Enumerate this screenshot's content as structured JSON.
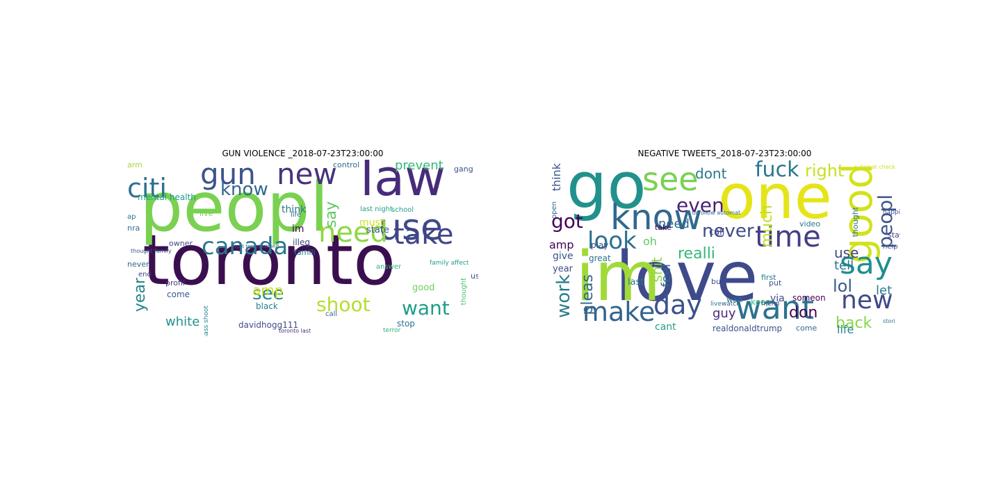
{
  "panels": [
    {
      "title": "GUN VIOLENCE _2018-07-23T23:00:00",
      "background": "#ffffff",
      "words": [
        {
          "text": "toronto",
          "color": "#3b0f4f"
        },
        {
          "text": "peopl",
          "color": "#7ad151"
        },
        {
          "text": "law",
          "color": "#472c7a"
        },
        {
          "text": "use",
          "color": "#3e4a89"
        },
        {
          "text": "gun",
          "color": "#3b528b"
        },
        {
          "text": "new",
          "color": "#46337e"
        },
        {
          "text": "citi",
          "color": "#2c728e"
        },
        {
          "text": "need",
          "color": "#8fd744"
        },
        {
          "text": "take",
          "color": "#414487"
        },
        {
          "text": "canada",
          "color": "#2a788e"
        },
        {
          "text": "know",
          "color": "#31688e"
        },
        {
          "text": "shoot",
          "color": "#b5de2b"
        },
        {
          "text": "see",
          "color": "#23898e"
        },
        {
          "text": "want",
          "color": "#1f9e89"
        },
        {
          "text": "year",
          "color": "#25858e"
        },
        {
          "text": "white",
          "color": "#21918c"
        },
        {
          "text": "amp",
          "color": "#d8e219"
        },
        {
          "text": "prevent",
          "color": "#35b779"
        },
        {
          "text": "say",
          "color": "#5ec962"
        },
        {
          "text": "davidhogg111",
          "color": "#3e4c8a"
        },
        {
          "text": "must",
          "color": "#cde11d"
        },
        {
          "text": "think",
          "color": "#2a788e"
        },
        {
          "text": "mental health",
          "color": "#1f9a8a"
        },
        {
          "text": "control",
          "color": "#31688e"
        },
        {
          "text": "state",
          "color": "#3b528b"
        },
        {
          "text": "im",
          "color": "#440154"
        },
        {
          "text": "black",
          "color": "#287d8e"
        },
        {
          "text": "come",
          "color": "#39568c"
        },
        {
          "text": "illeg",
          "color": "#3e4989"
        },
        {
          "text": "profil",
          "color": "#443a83"
        },
        {
          "text": "good",
          "color": "#6ece58"
        },
        {
          "text": "stop",
          "color": "#2c728e"
        },
        {
          "text": "owner",
          "color": "#404688"
        },
        {
          "text": "nra",
          "color": "#2d708e"
        },
        {
          "text": "arm",
          "color": "#a0da39"
        },
        {
          "text": "gang",
          "color": "#3b528b"
        },
        {
          "text": "school",
          "color": "#1fa188"
        },
        {
          "text": "famili",
          "color": "#2a788e"
        },
        {
          "text": "last night",
          "color": "#20a386"
        },
        {
          "text": "never",
          "color": "#31688e"
        },
        {
          "text": "end",
          "color": "#433e85"
        },
        {
          "text": "thought",
          "color": "#48c16e"
        },
        {
          "text": "us",
          "color": "#3e4a89"
        },
        {
          "text": "live",
          "color": "#7ad151"
        },
        {
          "text": "life",
          "color": "#2f6b8e"
        },
        {
          "text": "ap",
          "color": "#2a768e"
        },
        {
          "text": "answer",
          "color": "#35b779"
        },
        {
          "text": "call",
          "color": "#31688e"
        },
        {
          "text": "terror",
          "color": "#29af7f"
        },
        {
          "text": "mass shoot",
          "color": "#25848e"
        },
        {
          "text": "family affect",
          "color": "#1e9c89"
        },
        {
          "text": "thought family",
          "color": "#3b528b"
        },
        {
          "text": "toronto last",
          "color": "#472d7b"
        },
        {
          "text": "night torontostrong",
          "color": "#3b528b"
        }
      ]
    },
    {
      "title": "NEGATIVE TWEETS_2018-07-23T23:00:00",
      "background": "#ffffff",
      "words": [
        {
          "text": "love",
          "color": "#3e4a89"
        },
        {
          "text": "im",
          "color": "#a0da39"
        },
        {
          "text": "go",
          "color": "#21918c"
        },
        {
          "text": "one",
          "color": "#e5e419"
        },
        {
          "text": "know",
          "color": "#31688e"
        },
        {
          "text": "good",
          "color": "#d2e21b"
        },
        {
          "text": "see",
          "color": "#7ad151"
        },
        {
          "text": "want",
          "color": "#2c728e"
        },
        {
          "text": "time",
          "color": "#433e85"
        },
        {
          "text": "say",
          "color": "#218f8d"
        },
        {
          "text": "make",
          "color": "#33638d"
        },
        {
          "text": "look",
          "color": "#2d708e"
        },
        {
          "text": "day",
          "color": "#3b528b"
        },
        {
          "text": "new",
          "color": "#3e4989"
        },
        {
          "text": "fuck",
          "color": "#2a768e"
        },
        {
          "text": "peopl",
          "color": "#3b528b"
        },
        {
          "text": "even",
          "color": "#482475"
        },
        {
          "text": "right",
          "color": "#c8e020"
        },
        {
          "text": "got",
          "color": "#440154"
        },
        {
          "text": "work",
          "color": "#287c8e"
        },
        {
          "text": "never",
          "color": "#3e4c8a"
        },
        {
          "text": "lol",
          "color": "#38598c"
        },
        {
          "text": "pleas",
          "color": "#31688e"
        },
        {
          "text": "realli",
          "color": "#35b779"
        },
        {
          "text": "dont",
          "color": "#2a788e"
        },
        {
          "text": "back",
          "color": "#86d549"
        },
        {
          "text": "don",
          "color": "#440154"
        },
        {
          "text": "much",
          "color": "#c2df23"
        },
        {
          "text": "think",
          "color": "#3b528b"
        },
        {
          "text": "use",
          "color": "#414487"
        },
        {
          "text": "tell",
          "color": "#2c728e"
        },
        {
          "text": "shit",
          "color": "#90d743"
        },
        {
          "text": "guy",
          "color": "#482878"
        },
        {
          "text": "life",
          "color": "#25848e"
        },
        {
          "text": "let",
          "color": "#2a788e"
        },
        {
          "text": "need",
          "color": "#31688e"
        },
        {
          "text": "amp",
          "color": "#440154"
        },
        {
          "text": "oh",
          "color": "#5ec962"
        },
        {
          "text": "feel",
          "color": "#31688e"
        },
        {
          "text": "cant",
          "color": "#1f9e89"
        },
        {
          "text": "realdonaldtrump",
          "color": "#3b528b"
        },
        {
          "text": "give",
          "color": "#39568c"
        },
        {
          "text": "year",
          "color": "#3e4a89"
        },
        {
          "text": "great",
          "color": "#2c728e"
        },
        {
          "text": "call",
          "color": "#414487"
        },
        {
          "text": "last",
          "color": "#2a788e"
        },
        {
          "text": "play",
          "color": "#3b528b"
        },
        {
          "text": "thought",
          "color": "#2c728e"
        },
        {
          "text": "someon",
          "color": "#440154"
        },
        {
          "text": "via",
          "color": "#3e4989"
        },
        {
          "text": "wait",
          "color": "#2a768e"
        },
        {
          "text": "come",
          "color": "#31688e"
        },
        {
          "text": "first",
          "color": "#2a788e"
        },
        {
          "text": "put",
          "color": "#3b528b"
        },
        {
          "text": "keep",
          "color": "#35b779"
        },
        {
          "text": "stay",
          "color": "#3e4a89"
        },
        {
          "text": "take",
          "color": "#440154"
        },
        {
          "text": "video",
          "color": "#2c728e"
        },
        {
          "text": "buy",
          "color": "#3b528b"
        },
        {
          "text": "automat check",
          "color": "#cde11d"
        },
        {
          "text": "unfollow automat",
          "color": "#31688e"
        },
        {
          "text": "happi",
          "color": "#3e4c8a"
        },
        {
          "text": "help",
          "color": "#3b528b"
        },
        {
          "text": "stori",
          "color": "#2c728e"
        },
        {
          "text": "friend",
          "color": "#3e4989"
        },
        {
          "text": "live",
          "color": "#2a788e"
        },
        {
          "text": "watch",
          "color": "#39568c"
        },
        {
          "text": "open",
          "color": "#31688e"
        }
      ]
    }
  ]
}
